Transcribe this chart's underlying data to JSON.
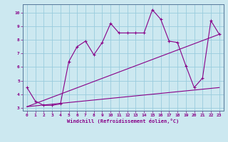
{
  "xlabel": "Windchill (Refroidissement éolien,°C)",
  "background_color": "#cce8f0",
  "line_color": "#880088",
  "grid_color": "#99ccdd",
  "xlim": [
    -0.5,
    23.5
  ],
  "ylim": [
    2.8,
    10.6
  ],
  "yticks": [
    3,
    4,
    5,
    6,
    7,
    8,
    9,
    10
  ],
  "xticks": [
    0,
    1,
    2,
    3,
    4,
    5,
    6,
    7,
    8,
    9,
    10,
    11,
    12,
    13,
    14,
    15,
    16,
    17,
    18,
    19,
    20,
    21,
    22,
    23
  ],
  "series1_x": [
    0,
    1,
    2,
    3,
    4,
    5,
    6,
    7,
    8,
    9,
    10,
    11,
    12,
    13,
    14,
    15,
    16,
    17,
    18,
    19,
    20,
    21,
    22,
    23
  ],
  "series1_y": [
    4.5,
    3.5,
    3.2,
    3.2,
    3.3,
    6.4,
    7.5,
    7.9,
    6.9,
    7.8,
    9.2,
    8.5,
    8.5,
    8.5,
    8.5,
    10.2,
    9.5,
    7.9,
    7.8,
    6.1,
    4.5,
    5.2,
    9.4,
    8.4
  ],
  "series2_x": [
    0,
    23
  ],
  "series2_y": [
    3.1,
    8.4
  ],
  "series3_x": [
    0,
    23
  ],
  "series3_y": [
    3.1,
    4.5
  ],
  "marker": "+"
}
